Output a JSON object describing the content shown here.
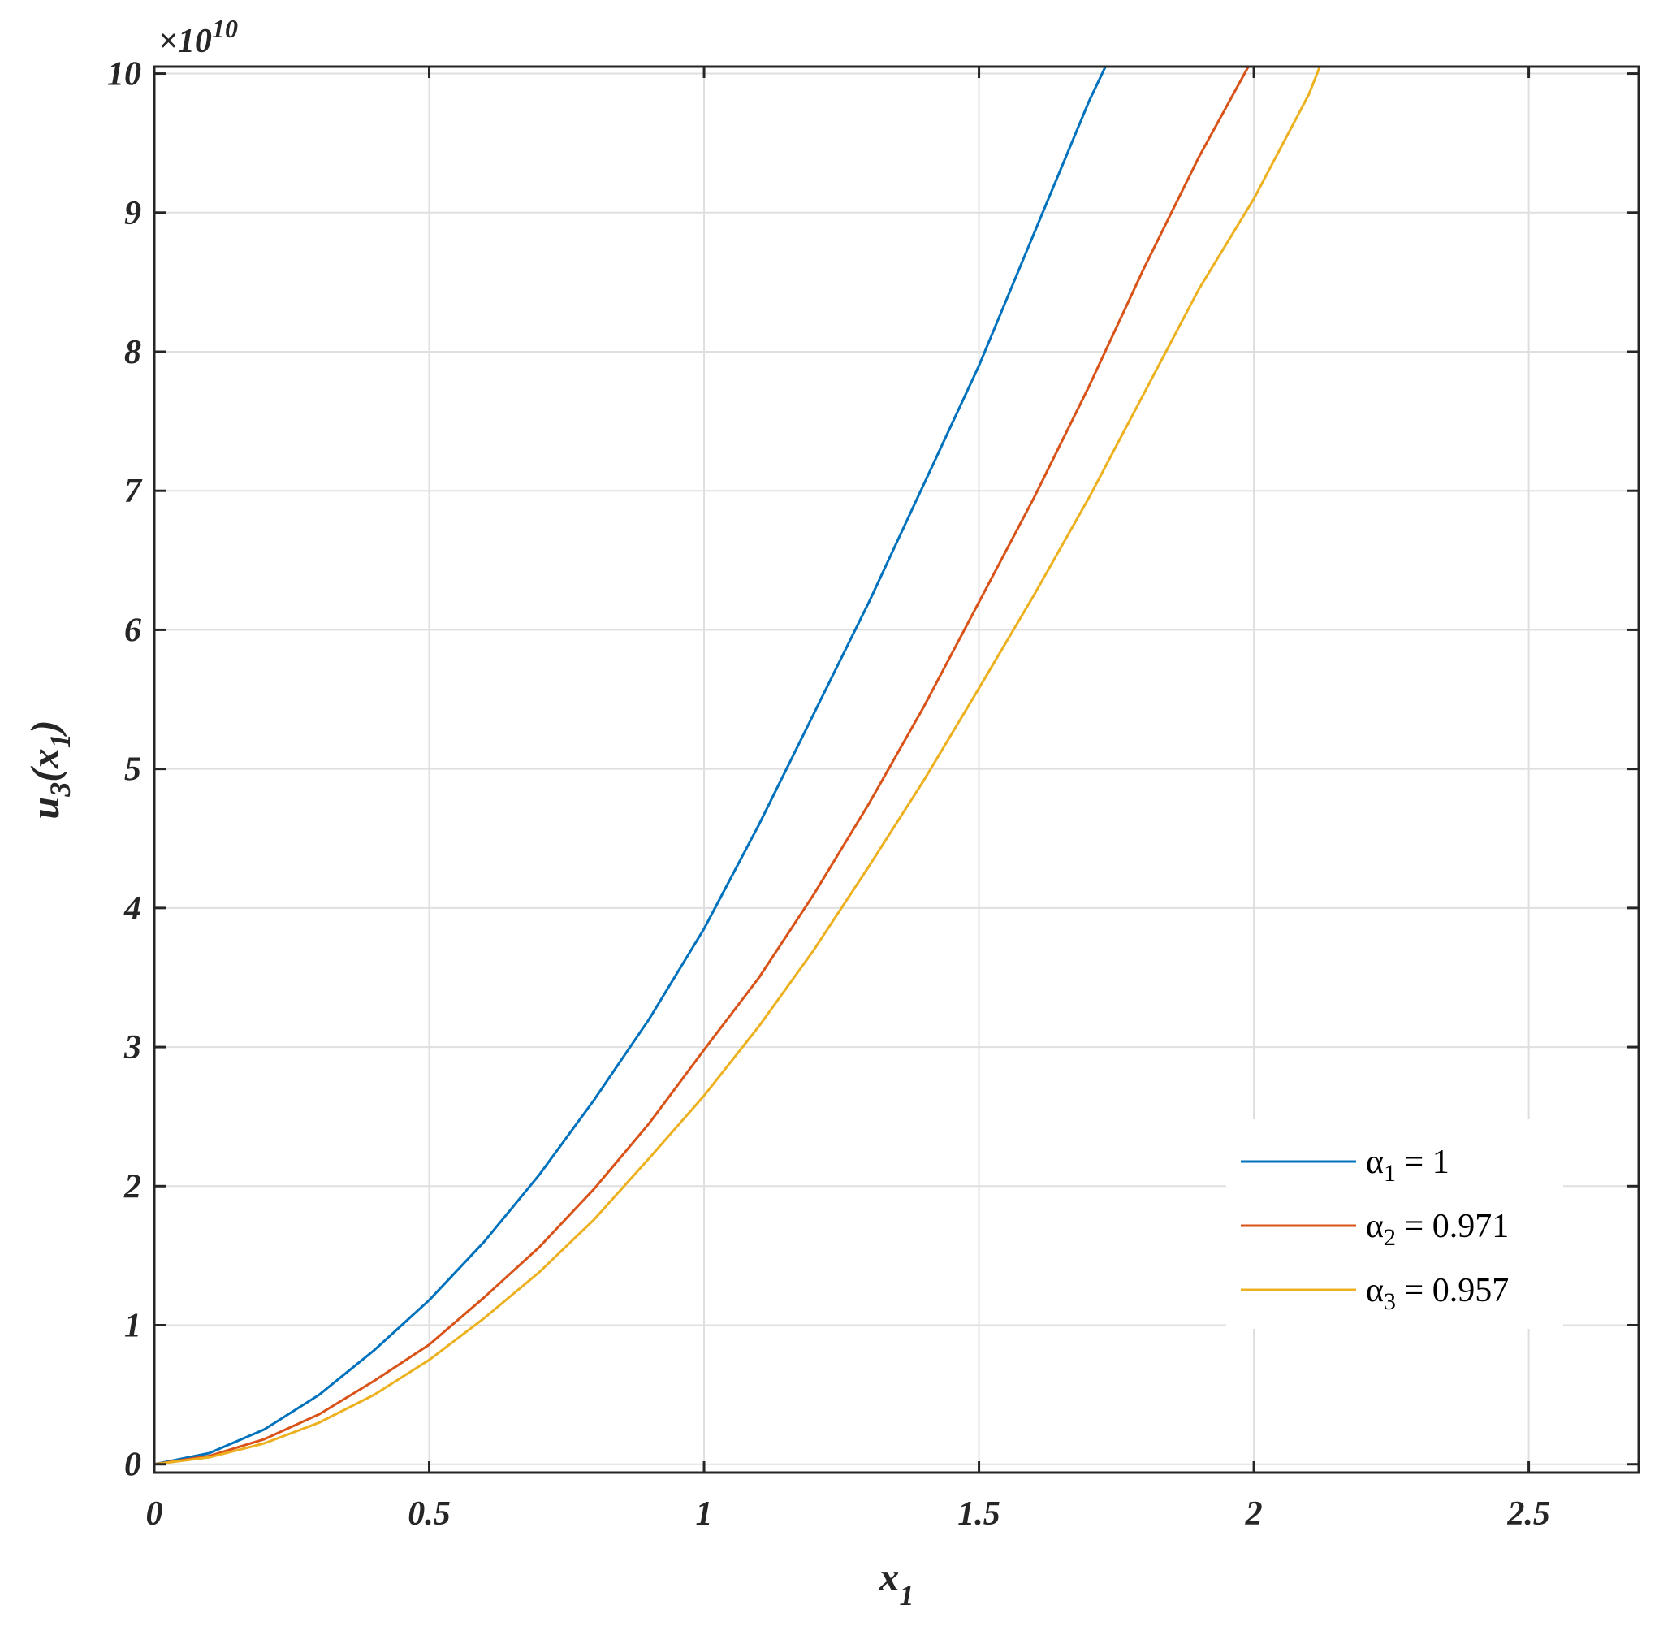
{
  "chart_data": {
    "type": "line",
    "xlabel": {
      "base": "x",
      "sub": "1"
    },
    "ylabel": {
      "base": "u",
      "sub1": "3",
      "paren_open": "(x",
      "sub2": "1",
      "paren_close": ")"
    },
    "y_exponent": {
      "prefix": "×10",
      "power": "10"
    },
    "xlim": [
      0,
      2.7
    ],
    "ylim": [
      -0.06,
      10.05
    ],
    "x_ticks": [
      0,
      0.5,
      1,
      1.5,
      2,
      2.5
    ],
    "x_tick_labels": [
      "0",
      "0.5",
      "1",
      "1.5",
      "2",
      "2.5"
    ],
    "y_ticks": [
      0,
      1,
      2,
      3,
      4,
      5,
      6,
      7,
      8,
      9,
      10
    ],
    "y_tick_labels": [
      "0",
      "1",
      "2",
      "3",
      "4",
      "5",
      "6",
      "7",
      "8",
      "9",
      "10"
    ],
    "grid": true,
    "legend_position": "lower-right",
    "series": [
      {
        "name": "α1 = 1",
        "legend_base": "α",
        "legend_sub": "1",
        "legend_rest": " = 1",
        "color": "#0072BD",
        "x": [
          0,
          0.1,
          0.2,
          0.3,
          0.4,
          0.5,
          0.6,
          0.7,
          0.8,
          0.9,
          1.0,
          1.1,
          1.2,
          1.3,
          1.4,
          1.5,
          1.6,
          1.7,
          1.73
        ],
        "y": [
          0,
          0.08,
          0.25,
          0.5,
          0.82,
          1.18,
          1.6,
          2.08,
          2.62,
          3.2,
          3.85,
          4.6,
          5.4,
          6.2,
          7.05,
          7.9,
          8.85,
          9.8,
          10.05
        ]
      },
      {
        "name": "α2 = 0.971",
        "legend_base": "α",
        "legend_sub": "2",
        "legend_rest": " = 0.971",
        "color": "#D95319",
        "x": [
          0,
          0.1,
          0.2,
          0.3,
          0.4,
          0.5,
          0.6,
          0.7,
          0.8,
          0.9,
          1.0,
          1.1,
          1.2,
          1.3,
          1.4,
          1.5,
          1.6,
          1.7,
          1.8,
          1.9,
          1.99
        ],
        "y": [
          0,
          0.06,
          0.18,
          0.36,
          0.6,
          0.86,
          1.2,
          1.56,
          1.98,
          2.45,
          2.98,
          3.5,
          4.1,
          4.75,
          5.45,
          6.2,
          6.95,
          7.75,
          8.6,
          9.4,
          10.05
        ]
      },
      {
        "name": "α3 = 0.957",
        "legend_base": "α",
        "legend_sub": "3",
        "legend_rest": " = 0.957",
        "color": "#EDB120",
        "x": [
          0,
          0.1,
          0.2,
          0.3,
          0.4,
          0.5,
          0.6,
          0.7,
          0.8,
          0.9,
          1.0,
          1.1,
          1.2,
          1.3,
          1.4,
          1.5,
          1.6,
          1.7,
          1.8,
          1.9,
          2.0,
          2.1,
          2.12
        ],
        "y": [
          0,
          0.05,
          0.15,
          0.3,
          0.5,
          0.75,
          1.05,
          1.38,
          1.76,
          2.2,
          2.65,
          3.15,
          3.7,
          4.3,
          4.92,
          5.58,
          6.25,
          6.95,
          7.7,
          8.45,
          9.1,
          9.85,
          10.05
        ]
      }
    ]
  }
}
